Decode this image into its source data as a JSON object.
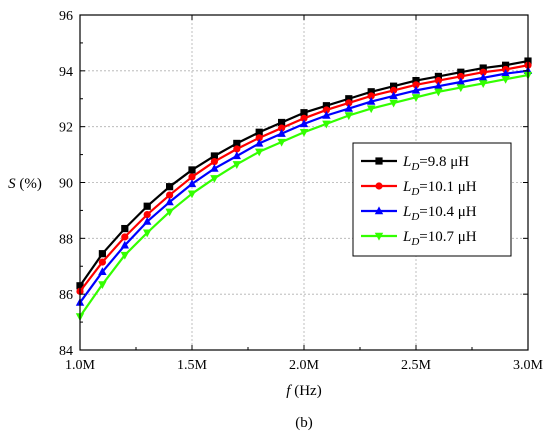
{
  "chart_data": {
    "type": "line",
    "panel_label": "(b)",
    "xlabel": {
      "var": "f",
      "unit": " (Hz)"
    },
    "ylabel": {
      "var": "S",
      "unit": " (%)"
    },
    "xlim": [
      1.0,
      3.0
    ],
    "ylim": [
      84,
      96
    ],
    "x_ticks": [
      1.0,
      1.5,
      2.0,
      2.5,
      3.0
    ],
    "x_tick_labels": [
      "1.0M",
      "1.5M",
      "2.0M",
      "2.5M",
      "3.0M"
    ],
    "y_ticks": [
      84,
      86,
      88,
      90,
      92,
      94,
      96
    ],
    "y_tick_labels": [
      "84",
      "86",
      "88",
      "90",
      "92",
      "94",
      "96"
    ],
    "grid": true,
    "legend_position": "center-right",
    "x": [
      1.0,
      1.1,
      1.2,
      1.3,
      1.4,
      1.5,
      1.6,
      1.7,
      1.8,
      1.9,
      2.0,
      2.1,
      2.2,
      2.3,
      2.4,
      2.5,
      2.6,
      2.7,
      2.8,
      2.9,
      3.0
    ],
    "series": [
      {
        "legend_main": "L",
        "legend_sub": "D",
        "legend_value": "=9.8 μH",
        "color": "#000000",
        "marker": "square",
        "values": [
          86.3,
          87.45,
          88.35,
          89.15,
          89.85,
          90.45,
          90.95,
          91.4,
          91.8,
          92.15,
          92.5,
          92.75,
          93.0,
          93.25,
          93.45,
          93.65,
          93.8,
          93.95,
          94.1,
          94.2,
          94.35
        ]
      },
      {
        "legend_main": "L",
        "legend_sub": "D",
        "legend_value": "=10.1 μH",
        "color": "#ff0000",
        "marker": "circle",
        "values": [
          86.1,
          87.15,
          88.05,
          88.85,
          89.55,
          90.2,
          90.75,
          91.2,
          91.6,
          91.95,
          92.3,
          92.6,
          92.85,
          93.1,
          93.3,
          93.5,
          93.65,
          93.8,
          93.95,
          94.05,
          94.2
        ]
      },
      {
        "legend_main": "L",
        "legend_sub": "D",
        "legend_value": "=10.4 μH",
        "color": "#0000ff",
        "marker": "triangle-up",
        "values": [
          85.7,
          86.8,
          87.75,
          88.6,
          89.3,
          89.95,
          90.5,
          90.95,
          91.4,
          91.75,
          92.1,
          92.4,
          92.65,
          92.9,
          93.1,
          93.3,
          93.45,
          93.6,
          93.75,
          93.9,
          94.0
        ]
      },
      {
        "legend_main": "L",
        "legend_sub": "D",
        "legend_value": "=10.7 μH",
        "color": "#33ff00",
        "marker": "triangle-down",
        "values": [
          85.2,
          86.35,
          87.4,
          88.2,
          88.95,
          89.6,
          90.15,
          90.65,
          91.1,
          91.45,
          91.8,
          92.1,
          92.4,
          92.65,
          92.85,
          93.05,
          93.25,
          93.4,
          93.55,
          93.7,
          93.85
        ]
      }
    ]
  }
}
